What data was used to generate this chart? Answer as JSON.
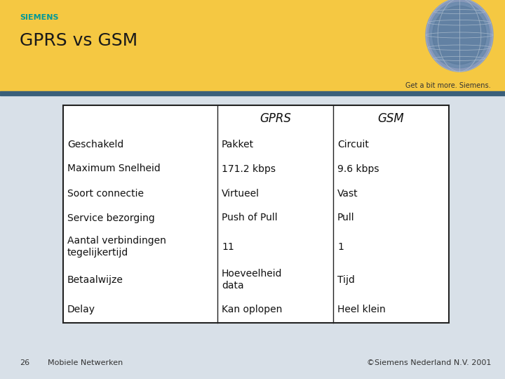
{
  "title": "GPRS vs GSM",
  "siemens_text": "SIEMENS",
  "siemens_color": "#009999",
  "tagline": "Get a bit more. Siemens.",
  "header_bg": "#F5C842",
  "header_bar_color": "#3A5F7A",
  "slide_bg": "#D8E0E8",
  "footer_left_num": "26",
  "footer_left_text": "Mobiele Netwerken",
  "footer_right_text": "©Siemens Nederland N.V. 2001",
  "table_headers": [
    "",
    "GPRS",
    "GSM"
  ],
  "table_rows": [
    [
      "Geschakeld",
      "Pakket",
      "Circuit"
    ],
    [
      "Maximum Snelheid",
      "171.2 kbps",
      "9.6 kbps"
    ],
    [
      "Soort connectie",
      "Virtueel",
      "Vast"
    ],
    [
      "Service bezorging",
      "Push of Pull",
      "Pull"
    ],
    [
      "Aantal verbindingen\ntegelijkertijd",
      "11",
      "1"
    ],
    [
      "Betaalwijze",
      "Hoeveelheid\ndata",
      "Tijd"
    ],
    [
      "Delay",
      "Kan oplopen",
      "Heel klein"
    ]
  ],
  "table_border": "#222222",
  "title_fontsize": 18,
  "siemens_fontsize": 8,
  "header_fontsize": 12,
  "cell_fontsize": 10,
  "footer_fontsize": 8,
  "tagline_fontsize": 7
}
